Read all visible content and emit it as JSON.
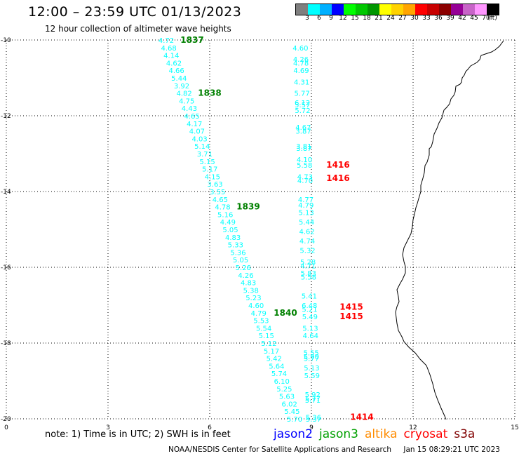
{
  "title": "12:00 – 23:59 UTC 01/13/2023",
  "subtitle": "12 hour collection of altimeter wave heights",
  "colorbar": {
    "colors": [
      "#7f7f7f",
      "#00ffff",
      "#00b0ff",
      "#0000ff",
      "#00ff00",
      "#00c800",
      "#009600",
      "#ffff00",
      "#ffd200",
      "#ffa500",
      "#ff0000",
      "#c80000",
      "#8b0000",
      "#960096",
      "#c864c8",
      "#ff96ff",
      "#000000"
    ],
    "labels": [
      "3",
      "6",
      "9",
      "12",
      "15",
      "18",
      "21",
      "24",
      "27",
      "30",
      "33",
      "36",
      "39",
      "42",
      "45",
      "70",
      "(ft)"
    ]
  },
  "axes": {
    "x_ticks": [
      "0",
      "3",
      "6",
      "9",
      "12",
      "15"
    ],
    "y_ticks": [
      "-10",
      "-12",
      "-14",
      "-16",
      "-18",
      "-20"
    ],
    "grid": "dotted"
  },
  "passes": [
    {
      "satellite": "jason3",
      "color": "#00ffff",
      "points": [
        [
          4.72,
          -10.0
        ],
        [
          4.68,
          -10.2
        ],
        [
          4.14,
          -10.4
        ],
        [
          4.62,
          -10.6
        ],
        [
          4.66,
          -10.8
        ],
        [
          5.44,
          -11.0
        ],
        [
          3.92,
          -11.2
        ],
        [
          4.82,
          -11.4
        ],
        [
          4.75,
          -11.6
        ],
        [
          4.43,
          -11.8
        ],
        [
          4.65,
          -12.0
        ],
        [
          4.17,
          -12.2
        ],
        [
          4.07,
          -12.4
        ],
        [
          4.03,
          -12.6
        ],
        [
          5.14,
          -12.8
        ],
        [
          3.71,
          -13.0
        ],
        [
          5.15,
          -13.2
        ],
        [
          5.17,
          -13.4
        ],
        [
          4.15,
          -13.6
        ],
        [
          3.63,
          -13.8
        ],
        [
          3.55,
          -14.0
        ],
        [
          4.65,
          -14.2
        ],
        [
          4.78,
          -14.4
        ],
        [
          5.16,
          -14.6
        ],
        [
          4.49,
          -14.8
        ],
        [
          5.05,
          -15.0
        ],
        [
          4.83,
          -15.2
        ],
        [
          5.33,
          -15.4
        ],
        [
          5.36,
          -15.6
        ],
        [
          5.05,
          -15.8
        ],
        [
          5.26,
          -16.0
        ],
        [
          4.26,
          -16.2
        ],
        [
          4.83,
          -16.4
        ],
        [
          5.38,
          -16.6
        ],
        [
          5.23,
          -16.8
        ],
        [
          4.6,
          -17.0
        ],
        [
          4.79,
          -17.2
        ],
        [
          5.53,
          -17.4
        ],
        [
          5.54,
          -17.6
        ],
        [
          5.15,
          -17.8
        ],
        [
          5.12,
          -18.0
        ],
        [
          5.17,
          -18.2
        ],
        [
          5.42,
          -18.4
        ],
        [
          5.64,
          -18.6
        ],
        [
          5.74,
          -18.8
        ],
        [
          6.1,
          -19.0
        ],
        [
          5.25,
          -19.2
        ],
        [
          5.63,
          -19.4
        ],
        [
          6.02,
          -19.6
        ],
        [
          5.45,
          -19.8
        ],
        [
          5.7,
          -20.0
        ]
      ]
    },
    {
      "satellite": "cryosat",
      "color": "#00ffff",
      "points": [
        [
          4.6,
          -10.2
        ],
        [
          4.26,
          -10.5
        ],
        [
          4.78,
          -10.6
        ],
        [
          4.69,
          -10.8
        ],
        [
          4.31,
          -11.1
        ],
        [
          5.77,
          -11.4
        ],
        [
          6.12,
          -11.65
        ],
        [
          5.57,
          -11.7
        ],
        [
          5.72,
          -11.85
        ],
        [
          4.67,
          -12.3
        ],
        [
          3.87,
          -12.4
        ],
        [
          3.81,
          -12.8
        ],
        [
          3.87,
          -12.85
        ],
        [
          4.1,
          -13.15
        ],
        [
          5.58,
          -13.3
        ],
        [
          4.73,
          -13.6
        ],
        [
          4.7,
          -13.7
        ],
        [
          4.77,
          -14.2
        ],
        [
          4.79,
          -14.35
        ],
        [
          5.13,
          -14.55
        ],
        [
          5.44,
          -14.8
        ],
        [
          4.62,
          -15.05
        ],
        [
          4.74,
          -15.3
        ],
        [
          5.32,
          -15.55
        ],
        [
          5.28,
          -15.85
        ],
        [
          4.71,
          -15.95
        ],
        [
          5.83,
          -16.15
        ],
        [
          5.58,
          -16.25
        ],
        [
          5.41,
          -16.75
        ],
        [
          6.48,
          -17.0
        ],
        [
          5.21,
          -17.1
        ],
        [
          5.49,
          -17.3
        ],
        [
          5.13,
          -17.6
        ],
        [
          4.64,
          -17.8
        ],
        [
          5.55,
          -18.25
        ],
        [
          5.9,
          -18.35
        ],
        [
          5.77,
          -18.4
        ],
        [
          5.13,
          -18.65
        ],
        [
          5.59,
          -18.85
        ],
        [
          5.92,
          -19.35
        ],
        [
          5.77,
          -19.45
        ],
        [
          5.71,
          -19.5
        ],
        [
          5.36,
          -19.95
        ],
        [
          5.37,
          -20.0
        ]
      ]
    }
  ],
  "time_labels": [
    {
      "text": "1837",
      "color": "#008000",
      "lat": -10.0
    },
    {
      "text": "1838",
      "color": "#008000",
      "lat": -11.4
    },
    {
      "text": "1839",
      "color": "#008000",
      "lat": -14.4
    },
    {
      "text": "1840",
      "color": "#008000",
      "lat": -17.2
    },
    {
      "text": "1416",
      "color": "#ff0000",
      "lat": -13.3
    },
    {
      "text": "1416",
      "color": "#ff0000",
      "lat": -13.65
    },
    {
      "text": "1415",
      "color": "#ff0000",
      "lat": -17.05
    },
    {
      "text": "1415",
      "color": "#ff0000",
      "lat": -17.3
    },
    {
      "text": "1414",
      "color": "#ff0000",
      "lat": -19.95
    }
  ],
  "note": "note:  1) Time is in UTC;  2) SWH is in feet",
  "legend": [
    {
      "name": "jason2",
      "color": "#0000ff"
    },
    {
      "name": "jason3",
      "color": "#00a000"
    },
    {
      "name": "altika",
      "color": "#ff8c00"
    },
    {
      "name": "cryosat",
      "color": "#ff0000"
    },
    {
      "name": "s3a",
      "color": "#800000"
    }
  ],
  "footer": {
    "credit": "NOAA/NESDIS Center for Satellite Applications and Research",
    "timestamp": "Jan 15 08:29:21 UTC 2023"
  }
}
